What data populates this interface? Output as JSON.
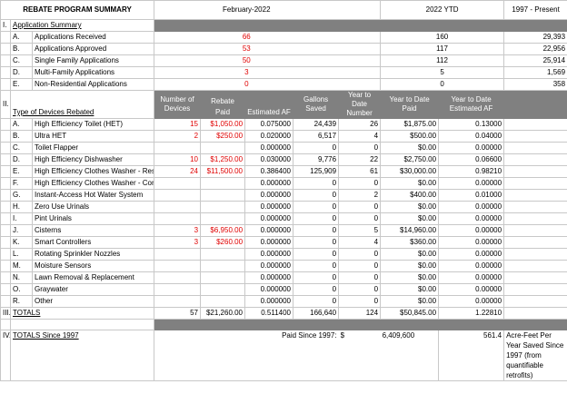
{
  "header": {
    "title": "REBATE PROGRAM SUMMARY",
    "col_month": "February-2022",
    "col_ytd": "2022  YTD",
    "col_since": "1997 - Present"
  },
  "sec1": {
    "num": "I.",
    "title": "Application Summary"
  },
  "apps": [
    {
      "letter": "A.",
      "label": "Applications Received",
      "month": "66",
      "ytd": "160",
      "since": "29,393"
    },
    {
      "letter": "B.",
      "label": "Applications Approved",
      "month": "53",
      "ytd": "117",
      "since": "22,956"
    },
    {
      "letter": "C.",
      "label": "Single Family Applications",
      "month": "50",
      "ytd": "112",
      "since": "25,914"
    },
    {
      "letter": "D.",
      "label": "Multi-Family Applications",
      "month": "3",
      "ytd": "5",
      "since": "1,569"
    },
    {
      "letter": "E.",
      "label": "Non-Residential Applications",
      "month": "0",
      "ytd": "0",
      "since": "358"
    }
  ],
  "sec2": {
    "num": "II.",
    "title": "Type of Devices Rebated"
  },
  "cols": {
    "num_devices": "Number of Devices",
    "rebate_paid": "Rebate Paid",
    "est_af": "Estimated AF",
    "gallons": "Gallons Saved",
    "ytd_number": "Year to Date Number",
    "ytd_paid": "Year to Date Paid",
    "ytd_af": "Year to Date Estimated AF"
  },
  "devices": [
    {
      "letter": "A.",
      "label": "High Efficiency Toilet (HET)",
      "num": "15",
      "paid": "$1,050.00",
      "af": "0.075000",
      "gal": "24,439",
      "ytdn": "26",
      "ytdp": "$1,875.00",
      "ytdaf": "0.13000"
    },
    {
      "letter": "B.",
      "label": "Ultra HET",
      "num": "2",
      "paid": "$250.00",
      "af": "0.020000",
      "gal": "6,517",
      "ytdn": "4",
      "ytdp": "$500.00",
      "ytdaf": "0.04000"
    },
    {
      "letter": "C.",
      "label": "Toilet Flapper",
      "num": "",
      "paid": "",
      "af": "0.000000",
      "gal": "0",
      "ytdn": "0",
      "ytdp": "$0.00",
      "ytdaf": "0.00000"
    },
    {
      "letter": "D.",
      "label": "High Efficiency Dishwasher",
      "num": "10",
      "paid": "$1,250.00",
      "af": "0.030000",
      "gal": "9,776",
      "ytdn": "22",
      "ytdp": "$2,750.00",
      "ytdaf": "0.06600"
    },
    {
      "letter": "E.",
      "label": "High Efficiency Clothes Washer - Res",
      "num": "24",
      "paid": "$11,500.00",
      "af": "0.386400",
      "gal": "125,909",
      "ytdn": "61",
      "ytdp": "$30,000.00",
      "ytdaf": "0.98210"
    },
    {
      "letter": "F.",
      "label": "High Efficiency Clothes Washer - Com",
      "num": "",
      "paid": "",
      "af": "0.000000",
      "gal": "0",
      "ytdn": "0",
      "ytdp": "$0.00",
      "ytdaf": "0.00000"
    },
    {
      "letter": "G.",
      "label": "Instant-Access Hot Water System",
      "num": "",
      "paid": "",
      "af": "0.000000",
      "gal": "0",
      "ytdn": "2",
      "ytdp": "$400.00",
      "ytdaf": "0.01000"
    },
    {
      "letter": "H.",
      "label": "Zero Use Urinals",
      "num": "",
      "paid": "",
      "af": "0.000000",
      "gal": "0",
      "ytdn": "0",
      "ytdp": "$0.00",
      "ytdaf": "0.00000"
    },
    {
      "letter": "I.",
      "label": "Pint Urinals",
      "num": "",
      "paid": "",
      "af": "0.000000",
      "gal": "0",
      "ytdn": "0",
      "ytdp": "$0.00",
      "ytdaf": "0.00000"
    },
    {
      "letter": "J.",
      "label": "Cisterns",
      "num": "3",
      "paid": "$6,950.00",
      "af": "0.000000",
      "gal": "0",
      "ytdn": "5",
      "ytdp": "$14,960.00",
      "ytdaf": "0.00000"
    },
    {
      "letter": "K.",
      "label": "Smart Controllers",
      "num": "3",
      "paid": "$260.00",
      "af": "0.000000",
      "gal": "0",
      "ytdn": "4",
      "ytdp": "$360.00",
      "ytdaf": "0.00000"
    },
    {
      "letter": "L.",
      "label": "Rotating Sprinkler Nozzles",
      "num": "",
      "paid": "",
      "af": "0.000000",
      "gal": "0",
      "ytdn": "0",
      "ytdp": "$0.00",
      "ytdaf": "0.00000"
    },
    {
      "letter": "M.",
      "label": "Moisture Sensors",
      "num": "",
      "paid": "",
      "af": "0.000000",
      "gal": "0",
      "ytdn": "0",
      "ytdp": "$0.00",
      "ytdaf": "0.00000"
    },
    {
      "letter": "N.",
      "label": "Lawn Removal & Replacement",
      "num": "",
      "paid": "",
      "af": "0.000000",
      "gal": "0",
      "ytdn": "0",
      "ytdp": "$0.00",
      "ytdaf": "0.00000"
    },
    {
      "letter": "O.",
      "label": "Graywater",
      "num": "",
      "paid": "",
      "af": "0.000000",
      "gal": "0",
      "ytdn": "0",
      "ytdp": "$0.00",
      "ytdaf": "0.00000"
    },
    {
      "letter": "R.",
      "label": "Other",
      "num": "",
      "paid": "",
      "af": "0.000000",
      "gal": "0",
      "ytdn": "0",
      "ytdp": "$0.00",
      "ytdaf": "0.00000"
    }
  ],
  "totals": {
    "num": "III.",
    "label": "TOTALS",
    "num_devices": "57",
    "paid": "$21,260.00",
    "af": "0.511400",
    "gal": "166,640",
    "ytdn": "124",
    "ytdp": "$50,845.00",
    "ytdaf": "1.22810"
  },
  "since": {
    "num": "IV.",
    "label": "TOTALS Since 1997",
    "paid_label": "Paid Since 1997:",
    "dollar": "$",
    "paid_value": "6,409,600",
    "af_value": "561.4",
    "af_label": "Acre-Feet Per Year Saved Since 1997 (from quantifiable retrofits)"
  }
}
